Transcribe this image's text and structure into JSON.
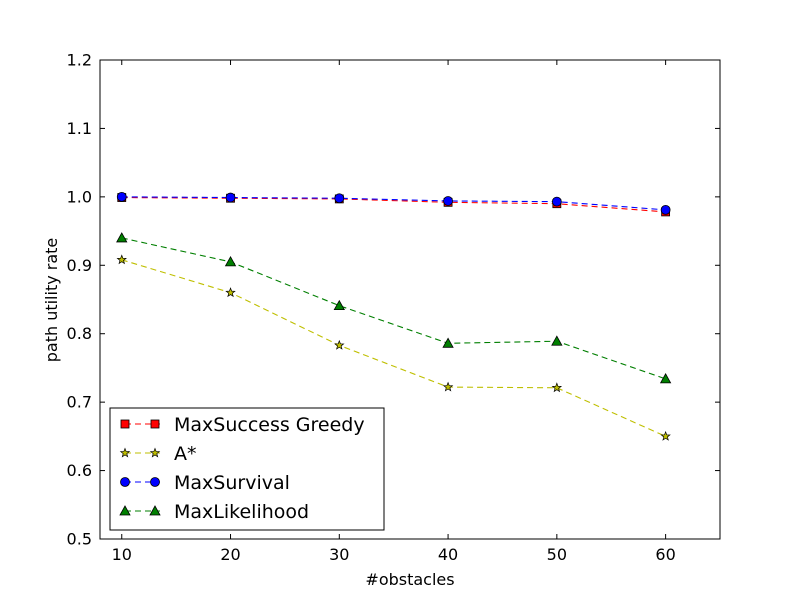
{
  "chart_data": {
    "type": "line",
    "title": "",
    "xlabel": "#obstacles",
    "ylabel": "path utility rate",
    "xlim": [
      8,
      65
    ],
    "ylim": [
      0.5,
      1.2
    ],
    "x_ticks": [
      10,
      20,
      30,
      40,
      50,
      60
    ],
    "x_tick_labels": [
      "10",
      "20",
      "30",
      "40",
      "50",
      "60"
    ],
    "y_ticks": [
      0.5,
      0.6,
      0.7,
      0.8,
      0.9,
      1.0,
      1.1,
      1.2
    ],
    "y_tick_labels": [
      "0.5",
      "0.6",
      "0.7",
      "0.8",
      "0.9",
      "1.0",
      "1.1",
      "1.2"
    ],
    "grid": false,
    "legend_position": "lower-left",
    "x": [
      10,
      20,
      30,
      40,
      50,
      60
    ],
    "series": [
      {
        "name": "MaxSuccess Greedy",
        "values": [
          0.999,
          0.998,
          0.997,
          0.992,
          0.99,
          0.978
        ],
        "color": "#ff0000",
        "marker": "square",
        "line_color": "#ff0000"
      },
      {
        "name": "A*",
        "values": [
          0.908,
          0.86,
          0.783,
          0.722,
          0.721,
          0.65
        ],
        "color": "#bfbf00",
        "marker": "star",
        "line_color": "#bfbf00"
      },
      {
        "name": "MaxSurvival",
        "values": [
          1.0,
          0.999,
          0.998,
          0.994,
          0.993,
          0.981
        ],
        "color": "#0000ff",
        "marker": "circle",
        "line_color": "#0000ff"
      },
      {
        "name": "MaxLikelihood",
        "values": [
          0.94,
          0.905,
          0.841,
          0.786,
          0.789,
          0.734
        ],
        "color": "#007f00",
        "marker": "triangle",
        "line_color": "#007f00"
      }
    ]
  }
}
